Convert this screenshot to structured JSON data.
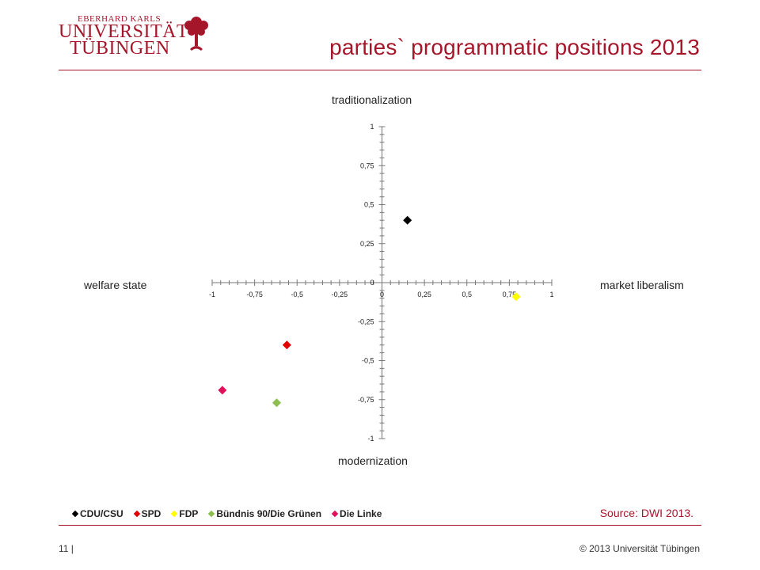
{
  "logo": {
    "line1": "EBERHARD KARLS",
    "line2": "UNIVERSITÄT",
    "line3": "TÜBINGEN"
  },
  "slide": {
    "title": "parties` programmatic positions 2013",
    "source": "Source: DWI 2013.",
    "page": "11 |",
    "copyright": "© 2013 Universität Tübingen"
  },
  "colors": {
    "brand": "#a5162b",
    "CDU/CSU": "#000000",
    "SPD": "#e00000",
    "FDP": "#ffff00",
    "Bündnis 90/Die Grünen": "#8cbf50",
    "Die Linke": "#e0105a"
  },
  "chart_data": {
    "type": "scatter",
    "title": "",
    "xlabel_left": "welfare state",
    "xlabel_right": "market liberalism",
    "ylabel_top": "traditionalization",
    "ylabel_bottom": "modernization",
    "xlim": [
      -1,
      1
    ],
    "ylim": [
      -1,
      1
    ],
    "x_ticks": [
      "-1",
      "-0,75",
      "-0,5",
      "-0,25",
      "0",
      "0,25",
      "0,5",
      "0,75",
      "1"
    ],
    "y_ticks": [
      "1",
      "0,75",
      "0,5",
      "0,25",
      "0",
      "-0,25",
      "-0,5",
      "-0,75",
      "-1"
    ],
    "grid": false,
    "legend_position": "bottom-left",
    "series": [
      {
        "name": "CDU/CSU",
        "color": "#000000",
        "x": 0.15,
        "y": 0.4
      },
      {
        "name": "SPD",
        "color": "#e00000",
        "x": -0.56,
        "y": -0.4
      },
      {
        "name": "FDP",
        "color": "#ffff00",
        "x": 0.79,
        "y": -0.09
      },
      {
        "name": "Bündnis 90/Die Grünen",
        "color": "#8cbf50",
        "x": -0.62,
        "y": -0.77
      },
      {
        "name": "Die Linke",
        "color": "#e0105a",
        "x": -0.94,
        "y": -0.69
      }
    ]
  }
}
